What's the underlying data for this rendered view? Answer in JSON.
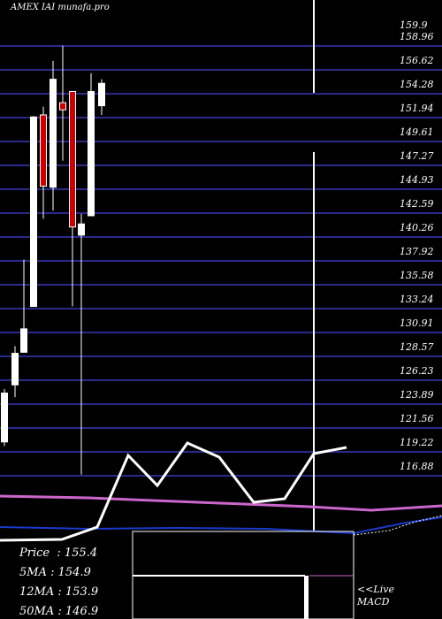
{
  "header": {
    "title": "AMEX  IAI munafa.pro"
  },
  "info": [
    {
      "label": "Price",
      "sep": "  : ",
      "value": "155.4"
    },
    {
      "label": "5MA",
      "sep": " : ",
      "value": "154.9"
    },
    {
      "label": "12MA",
      "sep": " : ",
      "value": "153.9"
    },
    {
      "label": "50MA",
      "sep": " : ",
      "value": "146.9"
    }
  ],
  "macd_label": [
    "<<Live",
    "MACD"
  ],
  "colors": {
    "up": "#ffffff",
    "down": "#cc0000",
    "grid": "#2a2a8c",
    "ma_short": "#ffffff",
    "ma_long": "#cc66cc",
    "ma_mid": "#1a3acc"
  },
  "chart_data": {
    "type": "candlestick",
    "ylim": [
      114.5,
      160.8
    ],
    "price_ticks": [
      "159.9",
      "158.96",
      "156.62",
      "154.28",
      "151.94",
      "149.61",
      "147.27",
      "144.93",
      "142.59",
      "140.26",
      "137.92",
      "135.58",
      "133.24",
      "130.91",
      "128.57",
      "126.23",
      "123.89",
      "121.56",
      "119.22",
      "116.88"
    ],
    "candles": [
      {
        "open": 120.2,
        "close": 125.0,
        "high": 125.4,
        "low": 119.8,
        "dir": "up"
      },
      {
        "open": 125.8,
        "close": 128.9,
        "high": 129.6,
        "low": 124.6,
        "dir": "up"
      },
      {
        "open": 129.0,
        "close": 131.3,
        "high": 138.1,
        "low": 129.0,
        "dir": "up"
      },
      {
        "open": 133.5,
        "close": 152.1,
        "high": 152.2,
        "low": 133.5,
        "dir": "up"
      },
      {
        "open": 152.3,
        "close": 145.3,
        "high": 153.1,
        "low": 142.1,
        "dir": "down"
      },
      {
        "open": 145.2,
        "close": 155.8,
        "high": 157.6,
        "low": 142.9,
        "dir": "up"
      },
      {
        "open": 153.5,
        "close": 152.8,
        "high": 159.1,
        "low": 147.8,
        "dir": "down"
      },
      {
        "open": 154.6,
        "close": 141.3,
        "high": 154.6,
        "low": 133.5,
        "dir": "down"
      },
      {
        "open": 140.5,
        "close": 141.6,
        "high": 142.6,
        "low": 117.0,
        "dir": "up"
      },
      {
        "open": 142.4,
        "close": 154.6,
        "high": 156.4,
        "low": 142.4,
        "dir": "up"
      },
      {
        "open": 153.2,
        "close": 155.4,
        "high": 155.8,
        "low": 152.3,
        "dir": "up"
      }
    ]
  }
}
